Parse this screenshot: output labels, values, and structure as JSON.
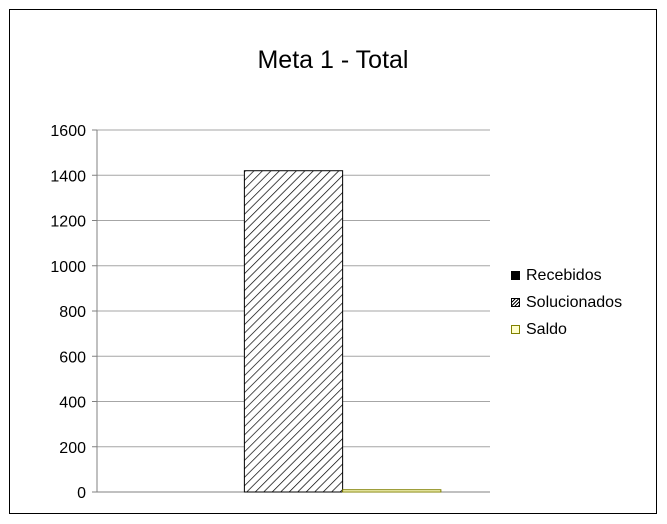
{
  "chart_data": {
    "type": "bar",
    "title": "Meta 1 - Total",
    "xlabel": "",
    "ylabel": "",
    "ylim": [
      0,
      1600
    ],
    "yticks": [
      0,
      200,
      400,
      600,
      800,
      1000,
      1200,
      1400,
      1600
    ],
    "grid": true,
    "legend_position": "right",
    "categories": [
      ""
    ],
    "series": [
      {
        "name": "Recebidos",
        "values": [
          0
        ],
        "color": "#000000",
        "pattern": "solid"
      },
      {
        "name": "Solucionados",
        "values": [
          1420
        ],
        "color": "#000000",
        "pattern": "diagonal-hatch"
      },
      {
        "name": "Saldo",
        "values": [
          10
        ],
        "color": "#ffffcc",
        "pattern": "solid"
      }
    ]
  }
}
